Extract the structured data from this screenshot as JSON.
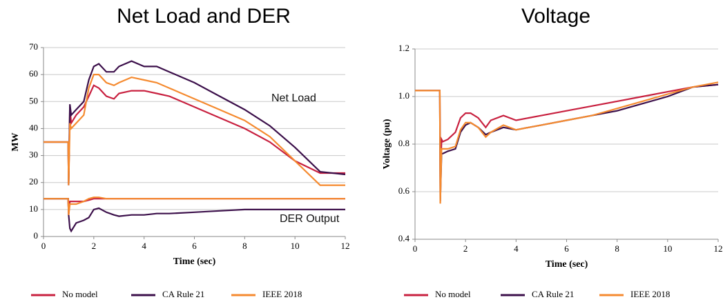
{
  "chart_data": [
    {
      "type": "line",
      "title": "Net Load and DER",
      "xlabel": "Time (sec)",
      "ylabel": "MW",
      "x": [
        0,
        0.98,
        1.0,
        1.05,
        1.1,
        1.3,
        1.6,
        1.8,
        2,
        2.2,
        2.5,
        2.8,
        3,
        3.5,
        4,
        4.5,
        5,
        6,
        7,
        8,
        9,
        10,
        11,
        12
      ],
      "xlim": [
        0,
        12
      ],
      "xticks": [
        0,
        2,
        4,
        6,
        8,
        10,
        12
      ],
      "ylim": [
        0,
        70
      ],
      "yticks": [
        0,
        10,
        20,
        30,
        40,
        50,
        60,
        70
      ],
      "grid": true,
      "annotations": [
        {
          "text": "Net Load"
        },
        {
          "text": "DER Output"
        }
      ],
      "series": [
        {
          "name": "No model",
          "color": "#c8203f",
          "values": [
            35,
            35,
            19,
            48,
            42,
            45,
            48,
            52,
            56,
            55,
            52,
            51,
            53,
            54,
            54,
            53,
            52,
            48,
            44,
            40,
            35,
            28,
            23.5,
            23.5
          ],
          "der_values": [
            14,
            14,
            8,
            13,
            13,
            13,
            13,
            13.5,
            14,
            14,
            14,
            14,
            14,
            14,
            14,
            14,
            14,
            14,
            14,
            14,
            14,
            14,
            14,
            14
          ]
        },
        {
          "name": "CA Rule 21",
          "color": "#3b0f4a",
          "values": [
            35,
            35,
            19,
            49,
            45,
            47,
            50,
            58,
            63,
            64,
            61,
            61,
            63,
            65,
            63,
            63,
            61,
            57,
            52,
            47,
            41,
            33,
            24,
            23
          ],
          "der_values": [
            14,
            14,
            8,
            3,
            2,
            5,
            6,
            7,
            10,
            10.5,
            9,
            8,
            7.5,
            8,
            8,
            8.5,
            8.5,
            9,
            9.5,
            10,
            10,
            10,
            10,
            10
          ]
        },
        {
          "name": "IEEE 2018",
          "color": "#f58a2f",
          "values": [
            35,
            35,
            19,
            42,
            40,
            42,
            45,
            55,
            60,
            60,
            57,
            56,
            57,
            59,
            58,
            57,
            55,
            51,
            47,
            43,
            37,
            28,
            19,
            19
          ],
          "der_values": [
            14,
            14,
            8,
            12,
            12,
            12,
            13,
            14,
            14.5,
            14.5,
            14,
            14,
            14,
            14,
            14,
            14,
            14,
            14,
            14,
            14,
            14,
            14,
            14,
            14
          ]
        }
      ]
    },
    {
      "type": "line",
      "title": "Voltage",
      "xlabel": "Time (sec)",
      "ylabel": "Voltage (pu)",
      "x": [
        0,
        0.98,
        1.0,
        1.05,
        1.1,
        1.3,
        1.6,
        1.8,
        2,
        2.2,
        2.5,
        2.8,
        3,
        3.5,
        4,
        4.5,
        5,
        6,
        7,
        8,
        9,
        10,
        11,
        12
      ],
      "xlim": [
        0,
        12
      ],
      "xticks": [
        0,
        2,
        4,
        6,
        8,
        10,
        12
      ],
      "ylim": [
        0.4,
        1.2
      ],
      "yticks": [
        0.4,
        0.6,
        0.8,
        {
          "value": 1,
          "label": "1.0"
        },
        1.2
      ],
      "grid": true,
      "series": [
        {
          "name": "No model",
          "color": "#c8203f",
          "values": [
            1.025,
            1.025,
            0.6,
            0.82,
            0.81,
            0.82,
            0.85,
            0.91,
            0.93,
            0.93,
            0.91,
            0.87,
            0.9,
            0.92,
            0.9,
            0.91,
            0.92,
            0.94,
            0.96,
            0.98,
            1.0,
            1.02,
            1.04,
            1.05
          ]
        },
        {
          "name": "CA Rule 21",
          "color": "#3b0f4a",
          "values": [
            1.025,
            1.025,
            0.56,
            0.76,
            0.76,
            0.77,
            0.78,
            0.85,
            0.88,
            0.89,
            0.87,
            0.84,
            0.85,
            0.87,
            0.86,
            0.87,
            0.88,
            0.9,
            0.92,
            0.94,
            0.97,
            1.0,
            1.04,
            1.05
          ]
        },
        {
          "name": "IEEE 2018",
          "color": "#f58a2f",
          "values": [
            1.025,
            1.025,
            0.55,
            0.78,
            0.78,
            0.78,
            0.79,
            0.86,
            0.89,
            0.89,
            0.87,
            0.83,
            0.85,
            0.88,
            0.86,
            0.87,
            0.88,
            0.9,
            0.92,
            0.95,
            0.98,
            1.01,
            1.04,
            1.06
          ]
        }
      ]
    }
  ]
}
